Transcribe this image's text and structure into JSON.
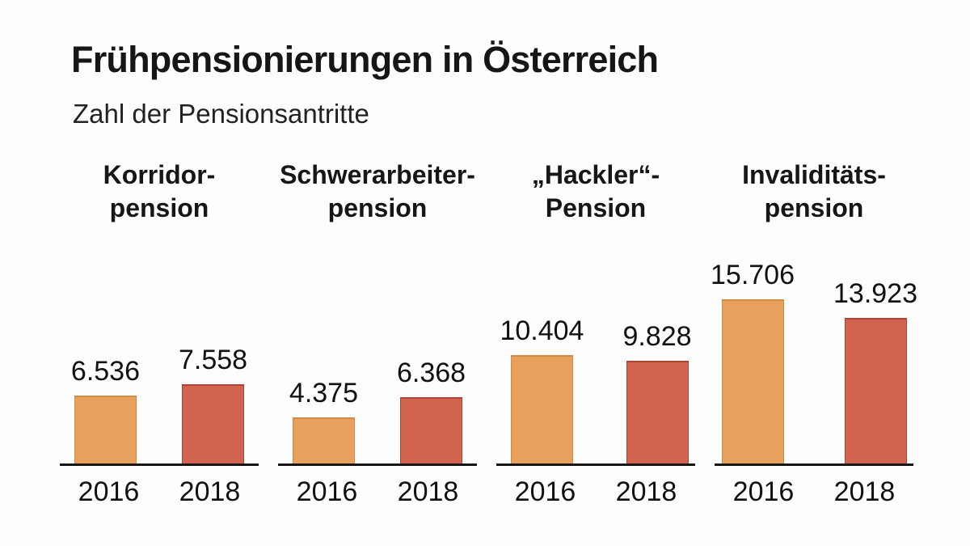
{
  "chart": {
    "title": "Frühpensionierungen in Österreich",
    "subtitle": "Zahl der Pensionsantritte"
  },
  "chart_data": {
    "type": "bar",
    "title": "Frühpensionierungen in Österreich",
    "subtitle": "Zahl der Pensionsantritte",
    "ylabel": "Zahl der Pensionsantritte",
    "categories": [
      "2016",
      "2018"
    ],
    "ylim": [
      0,
      16000
    ],
    "grid": false,
    "legend_position": "none",
    "series_colors": {
      "2016": "#e7a15c",
      "2018": "#d2634f"
    },
    "series_border_colors": {
      "2016": "#d08c42",
      "2018": "#ad4532"
    },
    "groups": [
      {
        "id": "korridorpension",
        "label_line1": "Korridor-",
        "label_line2": "pension",
        "values": {
          "2016": 6536,
          "2018": 7558
        },
        "value_labels": {
          "2016": "6.536",
          "2018": "7.558"
        }
      },
      {
        "id": "schwerarbeiterpension",
        "label_line1": "Schwerarbeiter-",
        "label_line2": "pension",
        "values": {
          "2016": 4375,
          "2018": 6368
        },
        "value_labels": {
          "2016": "4.375",
          "2018": "6.368"
        }
      },
      {
        "id": "hacklerpension",
        "label_line1": "„Hackler“-",
        "label_line2": "Pension",
        "values": {
          "2016": 10404,
          "2018": 9828
        },
        "value_labels": {
          "2016": "10.404",
          "2018": "9.828"
        }
      },
      {
        "id": "invaliditaetspension",
        "label_line1": "Invaliditäts-",
        "label_line2": "pension",
        "values": {
          "2016": 15706,
          "2018": 13923
        },
        "value_labels": {
          "2016": "15.706",
          "2018": "13.923"
        }
      }
    ]
  }
}
